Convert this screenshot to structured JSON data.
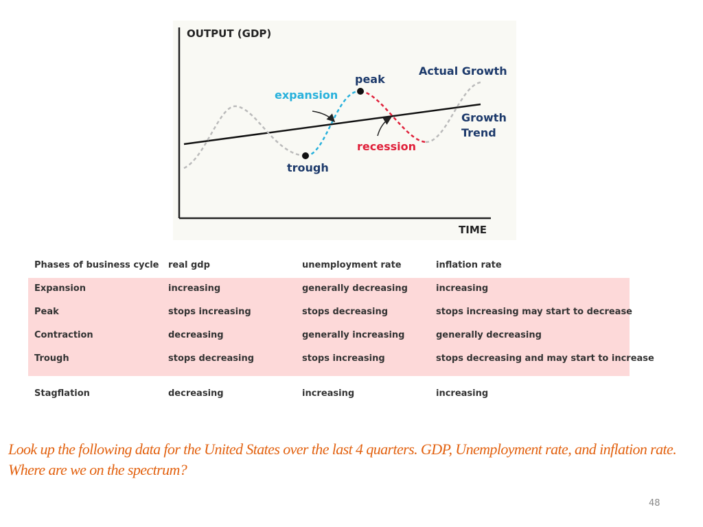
{
  "diagram": {
    "y_axis_label": "OUTPUT (GDP)",
    "x_axis_label": "TIME",
    "labels": {
      "expansion": "expansion",
      "peak": "peak",
      "actual_growth": "Actual Growth",
      "growth_trend": "Growth Trend",
      "recession": "recession",
      "trough": "trough"
    }
  },
  "table": {
    "header": [
      "Phases of business cycle",
      "real gdp",
      "unemployment rate",
      "inflation rate"
    ],
    "rows": [
      [
        "Expansion",
        "increasing",
        "generally decreasing",
        "increasing"
      ],
      [
        "Peak",
        "stops increasing",
        "stops decreasing",
        "stops increasing may start to decrease"
      ],
      [
        "Contraction",
        "decreasing",
        "generally increasing",
        "generally decreasing"
      ],
      [
        "Trough",
        "stops decreasing",
        "stops increasing",
        "stops decreasing and may start to increase"
      ]
    ],
    "extra_row": [
      "Stagflation",
      "decreasing",
      "increasing",
      "increasing"
    ]
  },
  "prompt": "Look up the following data for the United States over the last 4 quarters. GDP, Unemployment rate, and inflation rate.  Where are we on the spectrum?",
  "page_number": "48"
}
